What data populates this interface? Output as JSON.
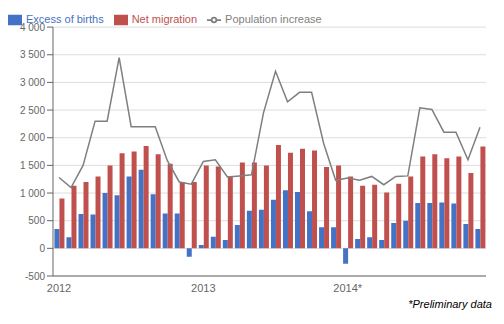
{
  "chart_data": {
    "type": "bar",
    "categories": [
      "2012",
      null,
      null,
      null,
      null,
      null,
      null,
      null,
      null,
      null,
      null,
      null,
      "2013",
      null,
      null,
      null,
      null,
      null,
      null,
      null,
      null,
      null,
      null,
      null,
      "2014*",
      null,
      null,
      null,
      null,
      null,
      null,
      null,
      null,
      null,
      null,
      null
    ],
    "series": [
      {
        "name": "Excess of births",
        "type": "bar",
        "color": "#4472C4",
        "values": [
          350,
          200,
          620,
          610,
          1000,
          960,
          1300,
          1420,
          980,
          630,
          630,
          -150,
          60,
          210,
          150,
          420,
          680,
          700,
          880,
          1050,
          1020,
          670,
          380,
          380,
          -280,
          170,
          200,
          150,
          460,
          500,
          820,
          820,
          830,
          810,
          440,
          350
        ]
      },
      {
        "name": "Net migration",
        "type": "bar",
        "color": "#C0504D",
        "values": [
          900,
          1130,
          1200,
          1300,
          1500,
          1720,
          1750,
          1850,
          1700,
          1530,
          1200,
          1200,
          1500,
          1480,
          1300,
          1550,
          1550,
          1500,
          1870,
          1730,
          1800,
          1770,
          1470,
          1500,
          1300,
          1130,
          1150,
          1010,
          1170,
          1300,
          1660,
          1700,
          1630,
          1660,
          1360,
          1840
        ]
      },
      {
        "name": "Population increase",
        "type": "line",
        "color": "#7F7F7F",
        "values": [
          1280,
          1100,
          1500,
          2300,
          2300,
          3450,
          2200,
          2200,
          2200,
          1590,
          1200,
          1160,
          1570,
          1600,
          1290,
          1310,
          1330,
          2450,
          3200,
          2650,
          2820,
          2820,
          1900,
          1230,
          1270,
          1230,
          1300,
          1150,
          1300,
          1310,
          2540,
          2510,
          2100,
          2100,
          1600,
          2190
        ]
      }
    ],
    "ylim": [
      -500,
      4000
    ],
    "yticks": [
      -500,
      0,
      500,
      {
        "value": 1000,
        "label": "1 000"
      },
      {
        "value": 1500,
        "label": "1 500"
      },
      {
        "value": 2000,
        "label": "2 000"
      },
      {
        "value": 2500,
        "label": "2 500"
      },
      {
        "value": 3000,
        "label": "3 000"
      },
      {
        "value": 3500,
        "label": "3 500"
      },
      {
        "value": 4000,
        "label": "4 000"
      }
    ],
    "grid": true,
    "legend": "upper left",
    "annotation": "*Preliminary data"
  }
}
